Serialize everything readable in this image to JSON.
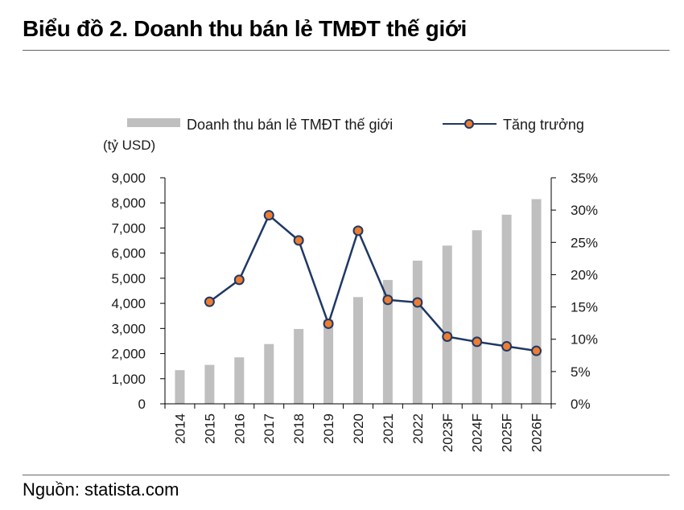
{
  "header": {
    "title": "Biểu đồ 2. Doanh thu bán lẻ TMĐT thế giới"
  },
  "footer": {
    "source": "Nguồn: statista.com"
  },
  "chart_data": {
    "type": "bar",
    "categories": [
      "2014",
      "2015",
      "2016",
      "2017",
      "2018",
      "2019",
      "2020",
      "2021",
      "2022",
      "2023F",
      "2024F",
      "2025F",
      "2026F"
    ],
    "series": [
      {
        "name": "Doanh thu bán lẻ TMĐT thế giới",
        "type": "bar",
        "axis": "left",
        "values": [
          1340,
          1550,
          1850,
          2380,
          2980,
          3350,
          4250,
          4930,
          5700,
          6300,
          6910,
          7530,
          8150
        ]
      },
      {
        "name": "Tăng trưởng",
        "type": "line",
        "axis": "right",
        "values": [
          null,
          15.8,
          19.2,
          29.2,
          25.3,
          12.4,
          26.8,
          16.1,
          15.7,
          10.4,
          9.6,
          8.9,
          8.2
        ]
      }
    ],
    "ylabel": "(tỷ USD)",
    "y_left": {
      "lim": [
        0,
        9000
      ],
      "ticks": [
        "0",
        "1,000",
        "2,000",
        "3,000",
        "4,000",
        "5,000",
        "6,000",
        "7,000",
        "8,000",
        "9,000"
      ]
    },
    "y_right": {
      "lim": [
        0,
        35
      ],
      "ticks": [
        "0%",
        "5%",
        "10%",
        "15%",
        "20%",
        "25%",
        "30%",
        "35%"
      ]
    },
    "legend": "top",
    "grid": false,
    "colors": {
      "bar": "#bfbfbf",
      "line": "#1f3864",
      "marker": "#ed7d31"
    }
  }
}
